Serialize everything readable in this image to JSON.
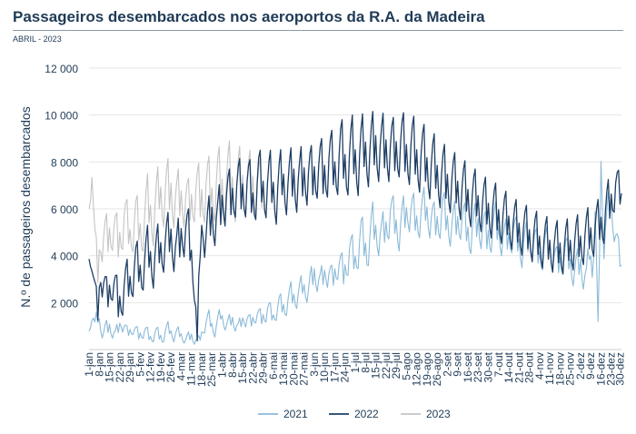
{
  "header": {
    "title": "Passageiros desembarcados nos aeroportos da R.A. da Madeira",
    "subtitle": "ABRIL - 2023"
  },
  "chart_data": {
    "type": "line",
    "title": "Passageiros desembarcados nos aeroportos da R.A. da Madeira",
    "subtitle": "ABRIL - 2023",
    "xlabel": "",
    "ylabel": "N.º de passageiros desembarcados",
    "ylim": [
      0,
      12000
    ],
    "yticks": [
      2000,
      4000,
      6000,
      8000,
      10000,
      12000
    ],
    "ytick_labels": [
      "2 000",
      "4 000",
      "6 000",
      "8 000",
      "10 000",
      "12 000"
    ],
    "grid": true,
    "legend_position": "bottom",
    "x_tick_day_index": [
      0,
      7,
      14,
      21,
      28,
      35,
      42,
      49,
      56,
      63,
      70,
      77,
      84,
      91,
      98,
      105,
      112,
      119,
      126,
      133,
      140,
      147,
      154,
      161,
      168,
      175,
      182,
      189,
      196,
      203,
      210,
      217,
      224,
      231,
      238,
      245,
      252,
      259,
      266,
      273,
      280,
      287,
      294,
      301,
      308,
      315,
      322,
      329,
      336,
      343,
      350,
      357,
      363
    ],
    "x_tick_labels": [
      "1-jan",
      "8-jan",
      "15-jan",
      "22-jan",
      "29-jan",
      "5-fev",
      "12-fev",
      "19-fev",
      "26-fev",
      "4-mar",
      "11-mar",
      "18-mar",
      "25-mar",
      "1-abr",
      "8-abr",
      "15-abr",
      "22-abr",
      "29-abr",
      "6-mai",
      "13-mai",
      "20-mai",
      "27-mai",
      "3-jun",
      "10-jun",
      "17-jun",
      "24-jun",
      "1-jul",
      "8-jul",
      "15-jul",
      "22-jul",
      "29-jul",
      "5-ago",
      "12-ago",
      "19-ago",
      "26-ago",
      "2-set",
      "9-set",
      "16-set",
      "23-set",
      "30-set",
      "7-out",
      "14-out",
      "21-out",
      "28-out",
      "4-nov",
      "11-nov",
      "18-nov",
      "25-nov",
      "2-dez",
      "9-dez",
      "16-dez",
      "23-dez",
      "30-dez"
    ],
    "x_ticks_note": "daily series; x values are day-of-year indices (0 = 1-jan)",
    "series": [
      {
        "name": "2021",
        "color": "#8bbad8",
        "x": [
          0,
          2,
          4,
          6,
          10,
          14,
          18,
          22,
          26,
          30,
          34,
          38,
          42,
          46,
          50,
          54,
          58,
          62,
          66,
          70,
          74,
          76,
          78,
          82,
          86,
          90,
          94,
          98,
          102,
          106,
          110,
          114,
          118,
          122,
          126,
          130,
          134,
          138,
          142,
          146,
          150,
          154,
          158,
          162,
          166,
          170,
          174,
          178,
          182,
          186,
          190,
          194,
          200,
          206,
          212,
          218,
          224,
          230,
          236,
          242,
          248,
          254,
          260,
          266,
          272,
          278,
          284,
          290,
          296,
          302,
          308,
          314,
          320,
          326,
          332,
          336,
          340,
          342,
          344,
          346,
          348,
          350,
          352,
          356,
          360,
          364
        ],
        "y": [
          700,
          1700,
          900,
          1400,
          700,
          1000,
          600,
          1200,
          700,
          900,
          600,
          800,
          500,
          700,
          500,
          900,
          600,
          700,
          400,
          600,
          300,
          500,
          900,
          1300,
          800,
          1500,
          1000,
          1300,
          900,
          1400,
          1100,
          1500,
          1300,
          1700,
          1400,
          1900,
          1800,
          2300,
          2200,
          2700,
          2500,
          3300,
          2800,
          3400,
          2900,
          3700,
          3200,
          4200,
          3800,
          4800,
          4200,
          5300,
          4700,
          5800,
          5100,
          6000,
          5500,
          6000,
          5300,
          5800,
          5200,
          5600,
          4900,
          5400,
          4800,
          5300,
          4600,
          5000,
          4300,
          4800,
          4000,
          4500,
          3600,
          4100,
          3300,
          3700,
          2900,
          4200,
          3500,
          5800,
          900,
          7900,
          4500,
          6500,
          4800,
          3500
        ],
        "amp": [
          400,
          500,
          400,
          500,
          400,
          400,
          300,
          400,
          300,
          300,
          300,
          300,
          300,
          300,
          300,
          300,
          300,
          300,
          200,
          300,
          200,
          200,
          300,
          400,
          300,
          400,
          300,
          400,
          300,
          400,
          400,
          400,
          400,
          500,
          400,
          500,
          500,
          600,
          500,
          600,
          600,
          700,
          600,
          700,
          700,
          800,
          800,
          900,
          900,
          1000,
          1000,
          1000,
          1000,
          1000,
          1000,
          1000,
          1000,
          1000,
          1000,
          1000,
          1000,
          1000,
          1000,
          1000,
          1000,
          1000,
          900,
          900,
          900,
          900,
          900,
          800,
          800,
          800,
          800,
          800,
          800,
          700,
          700,
          900,
          300,
          600,
          700,
          700,
          700,
          500
        ]
      },
      {
        "name": "2022",
        "color": "#1e3f66",
        "x": [
          0,
          2,
          4,
          6,
          8,
          12,
          16,
          20,
          24,
          28,
          32,
          36,
          40,
          44,
          48,
          52,
          56,
          60,
          64,
          68,
          72,
          74,
          76,
          78,
          80,
          84,
          88,
          92,
          96,
          100,
          104,
          108,
          112,
          116,
          120,
          124,
          128,
          132,
          136,
          140,
          144,
          148,
          152,
          156,
          160,
          164,
          168,
          172,
          176,
          180,
          184,
          188,
          192,
          196,
          200,
          204,
          208,
          212,
          216,
          220,
          224,
          228,
          232,
          236,
          240,
          244,
          248,
          252,
          256,
          260,
          264,
          268,
          272,
          276,
          280,
          284,
          288,
          292,
          296,
          300,
          304,
          308,
          312,
          316,
          320,
          324,
          328,
          332,
          336,
          340,
          344,
          348,
          352,
          356,
          360,
          364
        ],
        "y": [
          3800,
          3700,
          2400,
          1600,
          3400,
          2100,
          3000,
          1900,
          2600,
          2900,
          3600,
          3300,
          4200,
          3700,
          4300,
          4400,
          4900,
          4000,
          5200,
          4800,
          3200,
          300,
          4600,
          5500,
          4700,
          5800,
          5400,
          6600,
          6300,
          6900,
          6700,
          7000,
          6400,
          7200,
          6800,
          7100,
          6600,
          7300,
          6900,
          7400,
          7000,
          7600,
          7200,
          7800,
          7400,
          8000,
          7700,
          8300,
          7900,
          8400,
          8000,
          8600,
          8300,
          8800,
          8400,
          8700,
          8300,
          8800,
          8400,
          8500,
          8200,
          8100,
          7800,
          7700,
          7400,
          7200,
          7100,
          6900,
          6700,
          6500,
          6400,
          6200,
          6000,
          5900,
          5700,
          5600,
          5400,
          5200,
          5100,
          4900,
          4800,
          4600,
          4500,
          4400,
          4300,
          4300,
          4400,
          4500,
          4600,
          4800,
          5000,
          5200,
          5600,
          6200,
          7000,
          6500
        ],
        "amp": [
          300,
          400,
          700,
          700,
          900,
          1000,
          1000,
          1000,
          1100,
          1100,
          1100,
          1100,
          1100,
          1200,
          1200,
          1200,
          1200,
          1300,
          1300,
          1200,
          1200,
          100,
          1200,
          1300,
          1300,
          1300,
          1300,
          1400,
          1400,
          1400,
          1400,
          1400,
          1400,
          1400,
          1400,
          1400,
          1400,
          1400,
          1400,
          1500,
          1500,
          1500,
          1500,
          1500,
          1500,
          1500,
          1500,
          1600,
          1600,
          1600,
          1600,
          1600,
          1600,
          1600,
          1600,
          1600,
          1600,
          1600,
          1600,
          1600,
          1600,
          1600,
          1500,
          1500,
          1500,
          1500,
          1400,
          1400,
          1400,
          1400,
          1300,
          1300,
          1300,
          1300,
          1300,
          1200,
          1200,
          1200,
          1200,
          1200,
          1200,
          1200,
          1200,
          1200,
          1200,
          1200,
          1200,
          1200,
          1200,
          1200,
          1200,
          1200,
          1200,
          1200,
          1000,
          800
        ]
      },
      {
        "name": "2023",
        "color": "#c4c4c4",
        "x": [
          0,
          2,
          4,
          6,
          8,
          12,
          16,
          20,
          24,
          28,
          32,
          36,
          40,
          44,
          48,
          52,
          56,
          60,
          64,
          68,
          72,
          76,
          80,
          84,
          88,
          92,
          96,
          100,
          104,
          108,
          112,
          116,
          119
        ],
        "y": [
          5800,
          7700,
          4500,
          3300,
          4800,
          4600,
          5300,
          4500,
          5600,
          4900,
          5500,
          5000,
          6200,
          5600,
          6700,
          6500,
          6800,
          6200,
          6600,
          6000,
          6700,
          6400,
          6900,
          6600,
          7100,
          6900,
          7300,
          6800,
          7200,
          6900,
          7100,
          6800,
          6700
        ],
        "amp": [
          1000,
          400,
          900,
          900,
          1100,
          1200,
          1200,
          1100,
          1200,
          1100,
          1200,
          1200,
          1300,
          1300,
          1400,
          1500,
          1500,
          1400,
          1400,
          1300,
          1400,
          1500,
          1500,
          1500,
          1600,
          1600,
          1600,
          1500,
          1600,
          1500,
          1500,
          1400,
          1300
        ]
      }
    ]
  }
}
